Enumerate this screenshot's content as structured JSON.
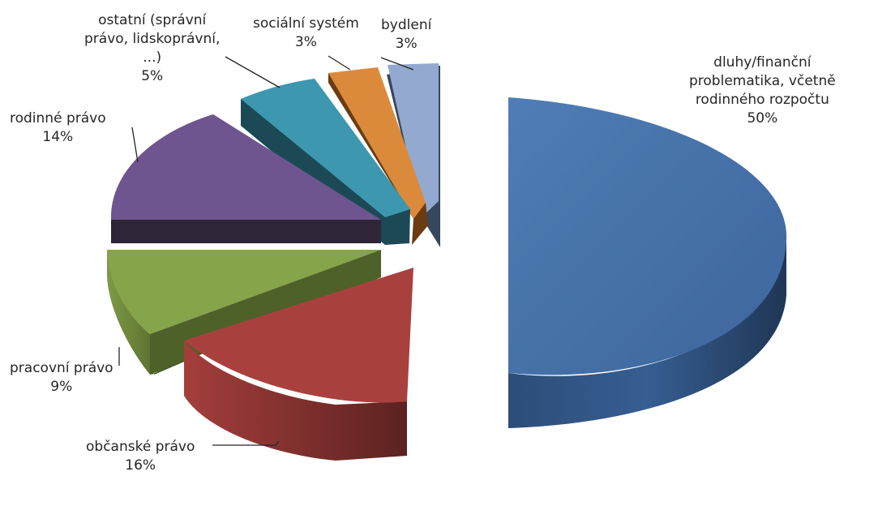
{
  "chart_data": {
    "type": "pie",
    "title": "",
    "slices": [
      {
        "label": "dluhy/finanční problematika, včetně rodinného rozpočtu",
        "label_lines": [
          "dluhy/finanční",
          "problematika, včetně",
          "rodinného rozpočtu"
        ],
        "value": 50,
        "value_label": "50%",
        "color": "#4470A8"
      },
      {
        "label": "občanské právo",
        "label_lines": [
          "občanské právo"
        ],
        "value": 16,
        "value_label": "16%",
        "color": "#A8413E"
      },
      {
        "label": "pracovní právo",
        "label_lines": [
          "pracovní právo"
        ],
        "value": 9,
        "value_label": "9%",
        "color": "#86A44A"
      },
      {
        "label": "rodinné právo",
        "label_lines": [
          "rodinné právo"
        ],
        "value": 14,
        "value_label": "14%",
        "color": "#6E558F"
      },
      {
        "label": "ostatní (správní právo, lidskoprávní, ...)",
        "label_lines": [
          "ostatní (správní",
          "právo, lidskoprávní,",
          "...)"
        ],
        "value": 5,
        "value_label": "5%",
        "color": "#3D97AF"
      },
      {
        "label": "sociální systém",
        "label_lines": [
          "sociální systém"
        ],
        "value": 3,
        "value_label": "3%",
        "color": "#DB8A3C"
      },
      {
        "label": "bydlení",
        "label_lines": [
          "bydlení"
        ],
        "value": 3,
        "value_label": "3%",
        "color": "#93A9CF"
      }
    ],
    "legend": "none",
    "style": "3d-exploded"
  }
}
